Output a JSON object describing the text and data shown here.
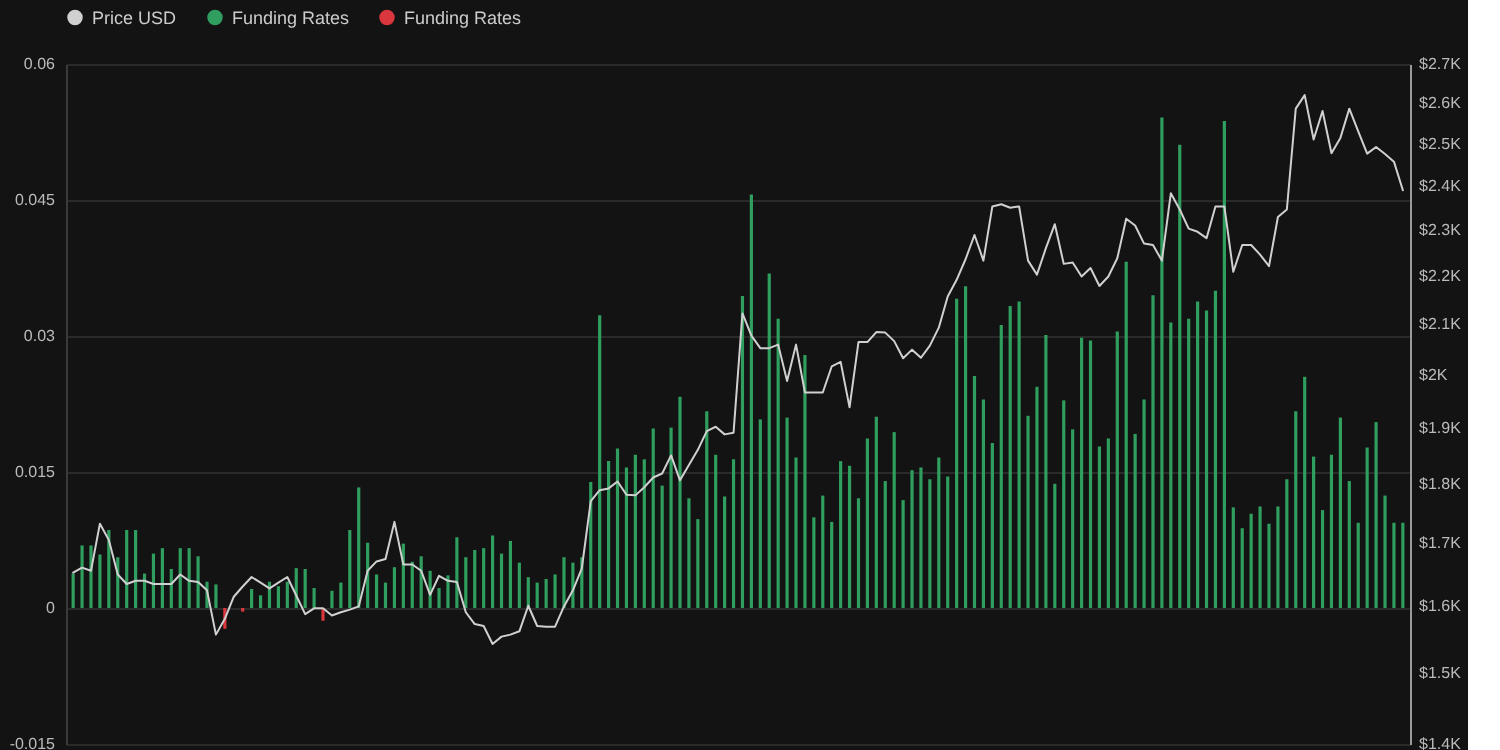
{
  "chart_data": {
    "type": "bar",
    "categories": [
      null,
      null,
      null,
      null,
      null,
      null,
      null,
      null,
      null,
      null,
      null,
      null,
      null,
      null,
      null,
      null,
      null,
      null,
      null,
      null,
      null,
      null,
      null,
      null,
      null,
      null,
      null,
      null,
      null,
      null,
      null,
      null,
      null,
      null,
      null,
      null,
      null,
      null,
      null,
      null,
      null,
      null,
      null,
      null,
      null,
      null,
      null,
      null,
      null,
      null,
      null,
      null,
      null,
      null,
      null,
      null,
      null,
      null,
      null,
      null,
      null,
      null,
      null,
      null,
      null,
      null,
      null,
      null,
      null,
      null,
      null,
      null,
      null,
      null,
      null,
      null,
      null,
      null,
      null,
      null,
      null,
      null,
      null,
      null,
      null,
      null,
      null,
      null,
      null,
      null,
      null,
      null,
      null,
      null,
      null,
      null,
      null,
      null,
      null,
      null,
      null,
      null,
      null,
      null,
      null,
      null,
      null,
      null,
      null,
      null,
      null,
      null,
      null,
      null,
      null,
      null,
      null,
      null,
      null,
      null,
      null,
      null,
      null,
      null,
      null,
      null,
      null,
      null,
      null,
      null,
      null,
      null,
      null,
      null,
      null,
      null,
      null,
      null,
      null,
      null,
      null,
      null,
      null,
      null,
      null,
      null,
      null,
      null,
      null,
      null
    ],
    "series": [
      {
        "name": "Price USD",
        "type": "line",
        "axis": "y2",
        "color": "#d0d0d0",
        "values": [
          1652,
          1660,
          1655,
          1732,
          1705,
          1649,
          1634,
          1639,
          1639,
          1634,
          1634,
          1634,
          1649,
          1639,
          1637,
          1624,
          1556,
          1580,
          1614,
          1630,
          1645,
          1636,
          1627,
          1636,
          1645,
          1616,
          1587,
          1596,
          1596,
          1585,
          1590,
          1594,
          1599,
          1655,
          1670,
          1674,
          1735,
          1665,
          1665,
          1655,
          1617,
          1647,
          1639,
          1637,
          1590,
          1572,
          1569,
          1542,
          1553,
          1556,
          1561,
          1600,
          1569,
          1568,
          1568,
          1599,
          1624,
          1659,
          1770,
          1789,
          1792,
          1804,
          1781,
          1780,
          1794,
          1811,
          1818,
          1850,
          1806,
          1833,
          1860,
          1894,
          1902,
          1888,
          1891,
          2122,
          2077,
          2052,
          2052,
          2059,
          1988,
          2059,
          1966,
          1966,
          1966,
          2016,
          2025,
          1938,
          2064,
          2064,
          2084,
          2083,
          2066,
          2032,
          2049,
          2033,
          2057,
          2093,
          2157,
          2192,
          2236,
          2289,
          2233,
          2353,
          2358,
          2350,
          2353,
          2233,
          2203,
          2260,
          2313,
          2226,
          2229,
          2199,
          2217,
          2179,
          2199,
          2238,
          2325,
          2310,
          2270,
          2267,
          2233,
          2383,
          2346,
          2303,
          2296,
          2282,
          2353,
          2353,
          2209,
          2267,
          2267,
          2246,
          2221,
          2329,
          2346,
          2586,
          2620,
          2510,
          2580,
          2477,
          2514,
          2586,
          2530,
          2476,
          2492,
          2475,
          2457,
          2390
        ]
      },
      {
        "name": "Funding Rates",
        "color": "#2f9e5f",
        "values": [
          0.0038,
          0.0069,
          0.0069,
          0.0059,
          0.0086,
          0.0056,
          0.0086,
          0.0086,
          0.0038,
          0.006,
          0.0066,
          0.0043,
          0.0066,
          0.0066,
          0.0057,
          0.0029,
          0.0026,
          null,
          0,
          null,
          0.0021,
          0.0014,
          0.0029,
          0.0024,
          0.0029,
          0.0044,
          0.0043,
          0.0022,
          null,
          0.0019,
          0.0028,
          0.0086,
          0.0133,
          0.0072,
          0.0037,
          0.0028,
          0.0045,
          0.0071,
          0.0051,
          0.0057,
          0.0041,
          0.0022,
          0.0036,
          0.0078,
          0.0056,
          0.0064,
          0.0066,
          0.008,
          0.006,
          0.0074,
          0.005,
          0.0034,
          0.0028,
          0.0032,
          0.0037,
          0.0056,
          0.005,
          0.0056,
          0.0139,
          0.0323,
          0.0162,
          0.0176,
          0.0155,
          0.0169,
          0.0164,
          0.0198,
          0.0135,
          0.0199,
          0.0233,
          0.0121,
          0.0098,
          0.0217,
          0.0169,
          0.0123,
          0.0164,
          0.0344,
          0.0456,
          0.0208,
          0.0369,
          0.0319,
          0.021,
          0.0166,
          0.0279,
          0.01,
          0.0124,
          0.0095,
          0.0162,
          0.0157,
          0.0121,
          0.0187,
          0.0211,
          0.014,
          0.0194,
          0.0119,
          0.0152,
          0.0155,
          0.0142,
          0.0166,
          0.0145,
          0.0341,
          0.0355,
          0.0256,
          0.023,
          0.0182,
          0.0312,
          0.0333,
          0.0338,
          0.0212,
          0.0244,
          0.0301,
          0.0137,
          0.0229,
          0.0197,
          0.0298,
          0.0295,
          0.0178,
          0.0187,
          0.0305,
          0.0382,
          0.0192,
          0.023,
          0.0345,
          0.0541,
          0.0315,
          0.0511,
          0.0319,
          0.0338,
          0.0328,
          0.035,
          0.0537,
          0.0111,
          0.0088,
          0.0104,
          0.0112,
          0.0093,
          0.0112,
          0.0142,
          0.0217,
          0.0255,
          0.0167,
          0.0108,
          0.0169,
          0.021,
          0.014,
          0.0094,
          0.0177,
          0.0205,
          0.0124,
          0.0094,
          0.0094
        ]
      },
      {
        "name": "Funding Rates",
        "color": "#d9363e",
        "values": [
          null,
          null,
          null,
          null,
          null,
          null,
          null,
          null,
          null,
          null,
          null,
          null,
          null,
          null,
          null,
          null,
          null,
          -0.0023,
          null,
          -0.0004,
          null,
          null,
          null,
          null,
          null,
          null,
          null,
          null,
          -0.0014,
          null,
          null,
          null,
          null,
          null,
          null,
          null,
          null,
          null,
          null,
          null,
          null,
          null,
          null,
          null,
          null,
          null,
          null,
          null,
          null,
          null,
          null,
          null,
          null,
          null,
          null,
          null,
          null,
          null,
          null,
          null,
          null,
          null,
          null,
          null,
          null,
          null,
          null,
          null,
          null,
          null,
          null,
          null,
          null,
          null,
          null,
          null,
          null,
          null,
          null,
          null,
          null,
          null,
          null,
          null,
          null,
          null,
          null,
          null,
          null,
          null,
          null,
          null,
          null,
          null,
          null,
          null,
          null,
          null,
          null,
          null,
          null,
          null,
          null,
          null,
          null,
          null,
          null,
          null,
          null,
          null,
          null,
          null,
          null,
          null,
          null,
          null,
          null,
          null,
          null,
          null,
          null,
          null,
          null,
          null,
          null,
          null,
          null,
          null,
          null,
          null,
          null,
          null,
          null,
          null,
          null,
          null,
          null,
          null,
          null,
          null,
          null,
          null,
          null,
          null,
          null,
          null,
          null,
          null,
          null,
          null
        ]
      }
    ],
    "ylim": [
      -0.015,
      0.06
    ],
    "yticks": [
      -0.015,
      0,
      0.015,
      0.03,
      0.045,
      0.06
    ],
    "y2lim": [
      1400,
      2700
    ],
    "y2ticks": [
      {
        "value": 1400,
        "label": "$1.4K"
      },
      {
        "value": 1500,
        "label": "$1.5K"
      },
      {
        "value": 1600,
        "label": "$1.6K"
      },
      {
        "value": 1700,
        "label": "$1.7K"
      },
      {
        "value": 1800,
        "label": "$1.8K"
      },
      {
        "value": 1900,
        "label": "$1.9K"
      },
      {
        "value": 2000,
        "label": "$2K"
      },
      {
        "value": 2100,
        "label": "$2.1K"
      },
      {
        "value": 2200,
        "label": "$2.2K"
      },
      {
        "value": 2300,
        "label": "$2.3K"
      },
      {
        "value": 2400,
        "label": "$2.4K"
      },
      {
        "value": 2500,
        "label": "$2.5K"
      },
      {
        "value": 2600,
        "label": "$2.6K"
      },
      {
        "value": 2700,
        "label": "$2.7K"
      }
    ],
    "log": "y2",
    "grid": "y",
    "legend": "top",
    "tick_labels": "y"
  }
}
